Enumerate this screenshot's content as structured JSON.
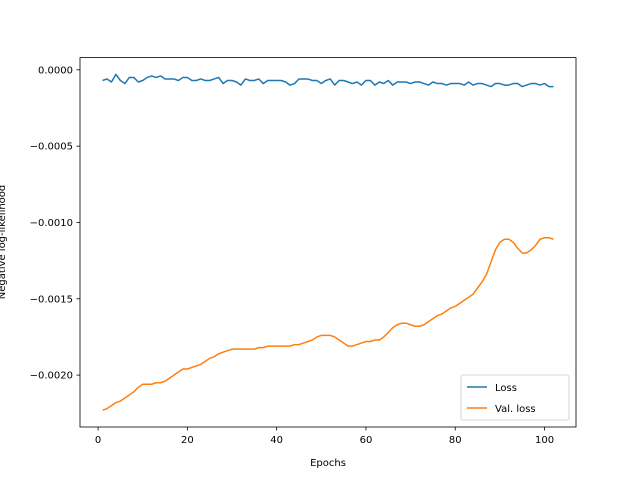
{
  "chart_data": {
    "type": "line",
    "xlabel": "Epochs",
    "ylabel": "Negative log-likelihood",
    "x": [
      1,
      2,
      3,
      4,
      5,
      6,
      7,
      8,
      9,
      10,
      11,
      12,
      13,
      14,
      15,
      16,
      17,
      18,
      19,
      20,
      21,
      22,
      23,
      24,
      25,
      26,
      27,
      28,
      29,
      30,
      31,
      32,
      33,
      34,
      35,
      36,
      37,
      38,
      39,
      40,
      41,
      42,
      43,
      44,
      45,
      46,
      47,
      48,
      49,
      50,
      51,
      52,
      53,
      54,
      55,
      56,
      57,
      58,
      59,
      60,
      61,
      62,
      63,
      64,
      65,
      66,
      67,
      68,
      69,
      70,
      71,
      72,
      73,
      74,
      75,
      76,
      77,
      78,
      79,
      80,
      81,
      82,
      83,
      84,
      85,
      86,
      87,
      88,
      89,
      90,
      91,
      92,
      93,
      94,
      95,
      96,
      97,
      98,
      99,
      100,
      101,
      102
    ],
    "series": [
      {
        "name": "Loss",
        "color": "#1f77b4",
        "values": [
          -7e-05,
          -6e-05,
          -8e-05,
          -3e-05,
          -7e-05,
          -9e-05,
          -5e-05,
          -5e-05,
          -8e-05,
          -7e-05,
          -5e-05,
          -4e-05,
          -5e-05,
          -4e-05,
          -6e-05,
          -6e-05,
          -6e-05,
          -7e-05,
          -5e-05,
          -5e-05,
          -7e-05,
          -7e-05,
          -6e-05,
          -7e-05,
          -7e-05,
          -6e-05,
          -5e-05,
          -9e-05,
          -7e-05,
          -7e-05,
          -8e-05,
          -0.0001,
          -6e-05,
          -7e-05,
          -7e-05,
          -6e-05,
          -9e-05,
          -7e-05,
          -7e-05,
          -7e-05,
          -7e-05,
          -8e-05,
          -0.0001,
          -9e-05,
          -6e-05,
          -6e-05,
          -6e-05,
          -7e-05,
          -7e-05,
          -9e-05,
          -7e-05,
          -6e-05,
          -0.0001,
          -7e-05,
          -7e-05,
          -8e-05,
          -9e-05,
          -8e-05,
          -0.0001,
          -7e-05,
          -7e-05,
          -0.0001,
          -8e-05,
          -9e-05,
          -7e-05,
          -0.0001,
          -8e-05,
          -8e-05,
          -8e-05,
          -9e-05,
          -8e-05,
          -8e-05,
          -9e-05,
          -0.0001,
          -8e-05,
          -9e-05,
          -9e-05,
          -0.0001,
          -9e-05,
          -9e-05,
          -9e-05,
          -0.0001,
          -8e-05,
          -0.0001,
          -9e-05,
          -9e-05,
          -0.0001,
          -0.00011,
          -9e-05,
          -9e-05,
          -0.0001,
          -0.0001,
          -9e-05,
          -9e-05,
          -0.00011,
          -0.0001,
          -9e-05,
          -9e-05,
          -0.0001,
          -9e-05,
          -0.00011,
          -0.00011
        ]
      },
      {
        "name": "Val. loss",
        "color": "#ff7f0e",
        "values": [
          -0.00223,
          -0.00222,
          -0.0022,
          -0.00218,
          -0.00217,
          -0.00215,
          -0.00213,
          -0.00211,
          -0.00208,
          -0.00206,
          -0.00206,
          -0.00206,
          -0.00205,
          -0.00205,
          -0.00204,
          -0.00202,
          -0.002,
          -0.00198,
          -0.00196,
          -0.00196,
          -0.00195,
          -0.00194,
          -0.00193,
          -0.00191,
          -0.00189,
          -0.00188,
          -0.00186,
          -0.00185,
          -0.00184,
          -0.00183,
          -0.00183,
          -0.00183,
          -0.00183,
          -0.00183,
          -0.00183,
          -0.00182,
          -0.00182,
          -0.00181,
          -0.00181,
          -0.00181,
          -0.00181,
          -0.00181,
          -0.00181,
          -0.0018,
          -0.0018,
          -0.00179,
          -0.00178,
          -0.00177,
          -0.00175,
          -0.00174,
          -0.00174,
          -0.00174,
          -0.00175,
          -0.00177,
          -0.00179,
          -0.00181,
          -0.00181,
          -0.0018,
          -0.00179,
          -0.00178,
          -0.00178,
          -0.00177,
          -0.00177,
          -0.00175,
          -0.00172,
          -0.00169,
          -0.00167,
          -0.00166,
          -0.00166,
          -0.00167,
          -0.00168,
          -0.00168,
          -0.00167,
          -0.00165,
          -0.00163,
          -0.00161,
          -0.0016,
          -0.00158,
          -0.00156,
          -0.00155,
          -0.00153,
          -0.00151,
          -0.00149,
          -0.00147,
          -0.00143,
          -0.00139,
          -0.00134,
          -0.00126,
          -0.00118,
          -0.00113,
          -0.00111,
          -0.00111,
          -0.00113,
          -0.00117,
          -0.0012,
          -0.0012,
          -0.00118,
          -0.00115,
          -0.00111,
          -0.0011,
          -0.0011,
          -0.00111
        ]
      }
    ],
    "xlim": [
      -4.05,
      107.05
    ],
    "ylim": [
      -0.00234,
      8e-05
    ],
    "xticks": [
      0,
      20,
      40,
      60,
      80,
      100
    ],
    "yticks": [
      {
        "value": 0,
        "label": "0.0000"
      },
      {
        "value": -0.0005,
        "label": "−0.0005"
      },
      {
        "value": -0.001,
        "label": "−0.0010"
      },
      {
        "value": -0.0015,
        "label": "−0.0015"
      },
      {
        "value": -0.002,
        "label": "−0.0020"
      }
    ],
    "grid": false,
    "legend": "lower right"
  }
}
